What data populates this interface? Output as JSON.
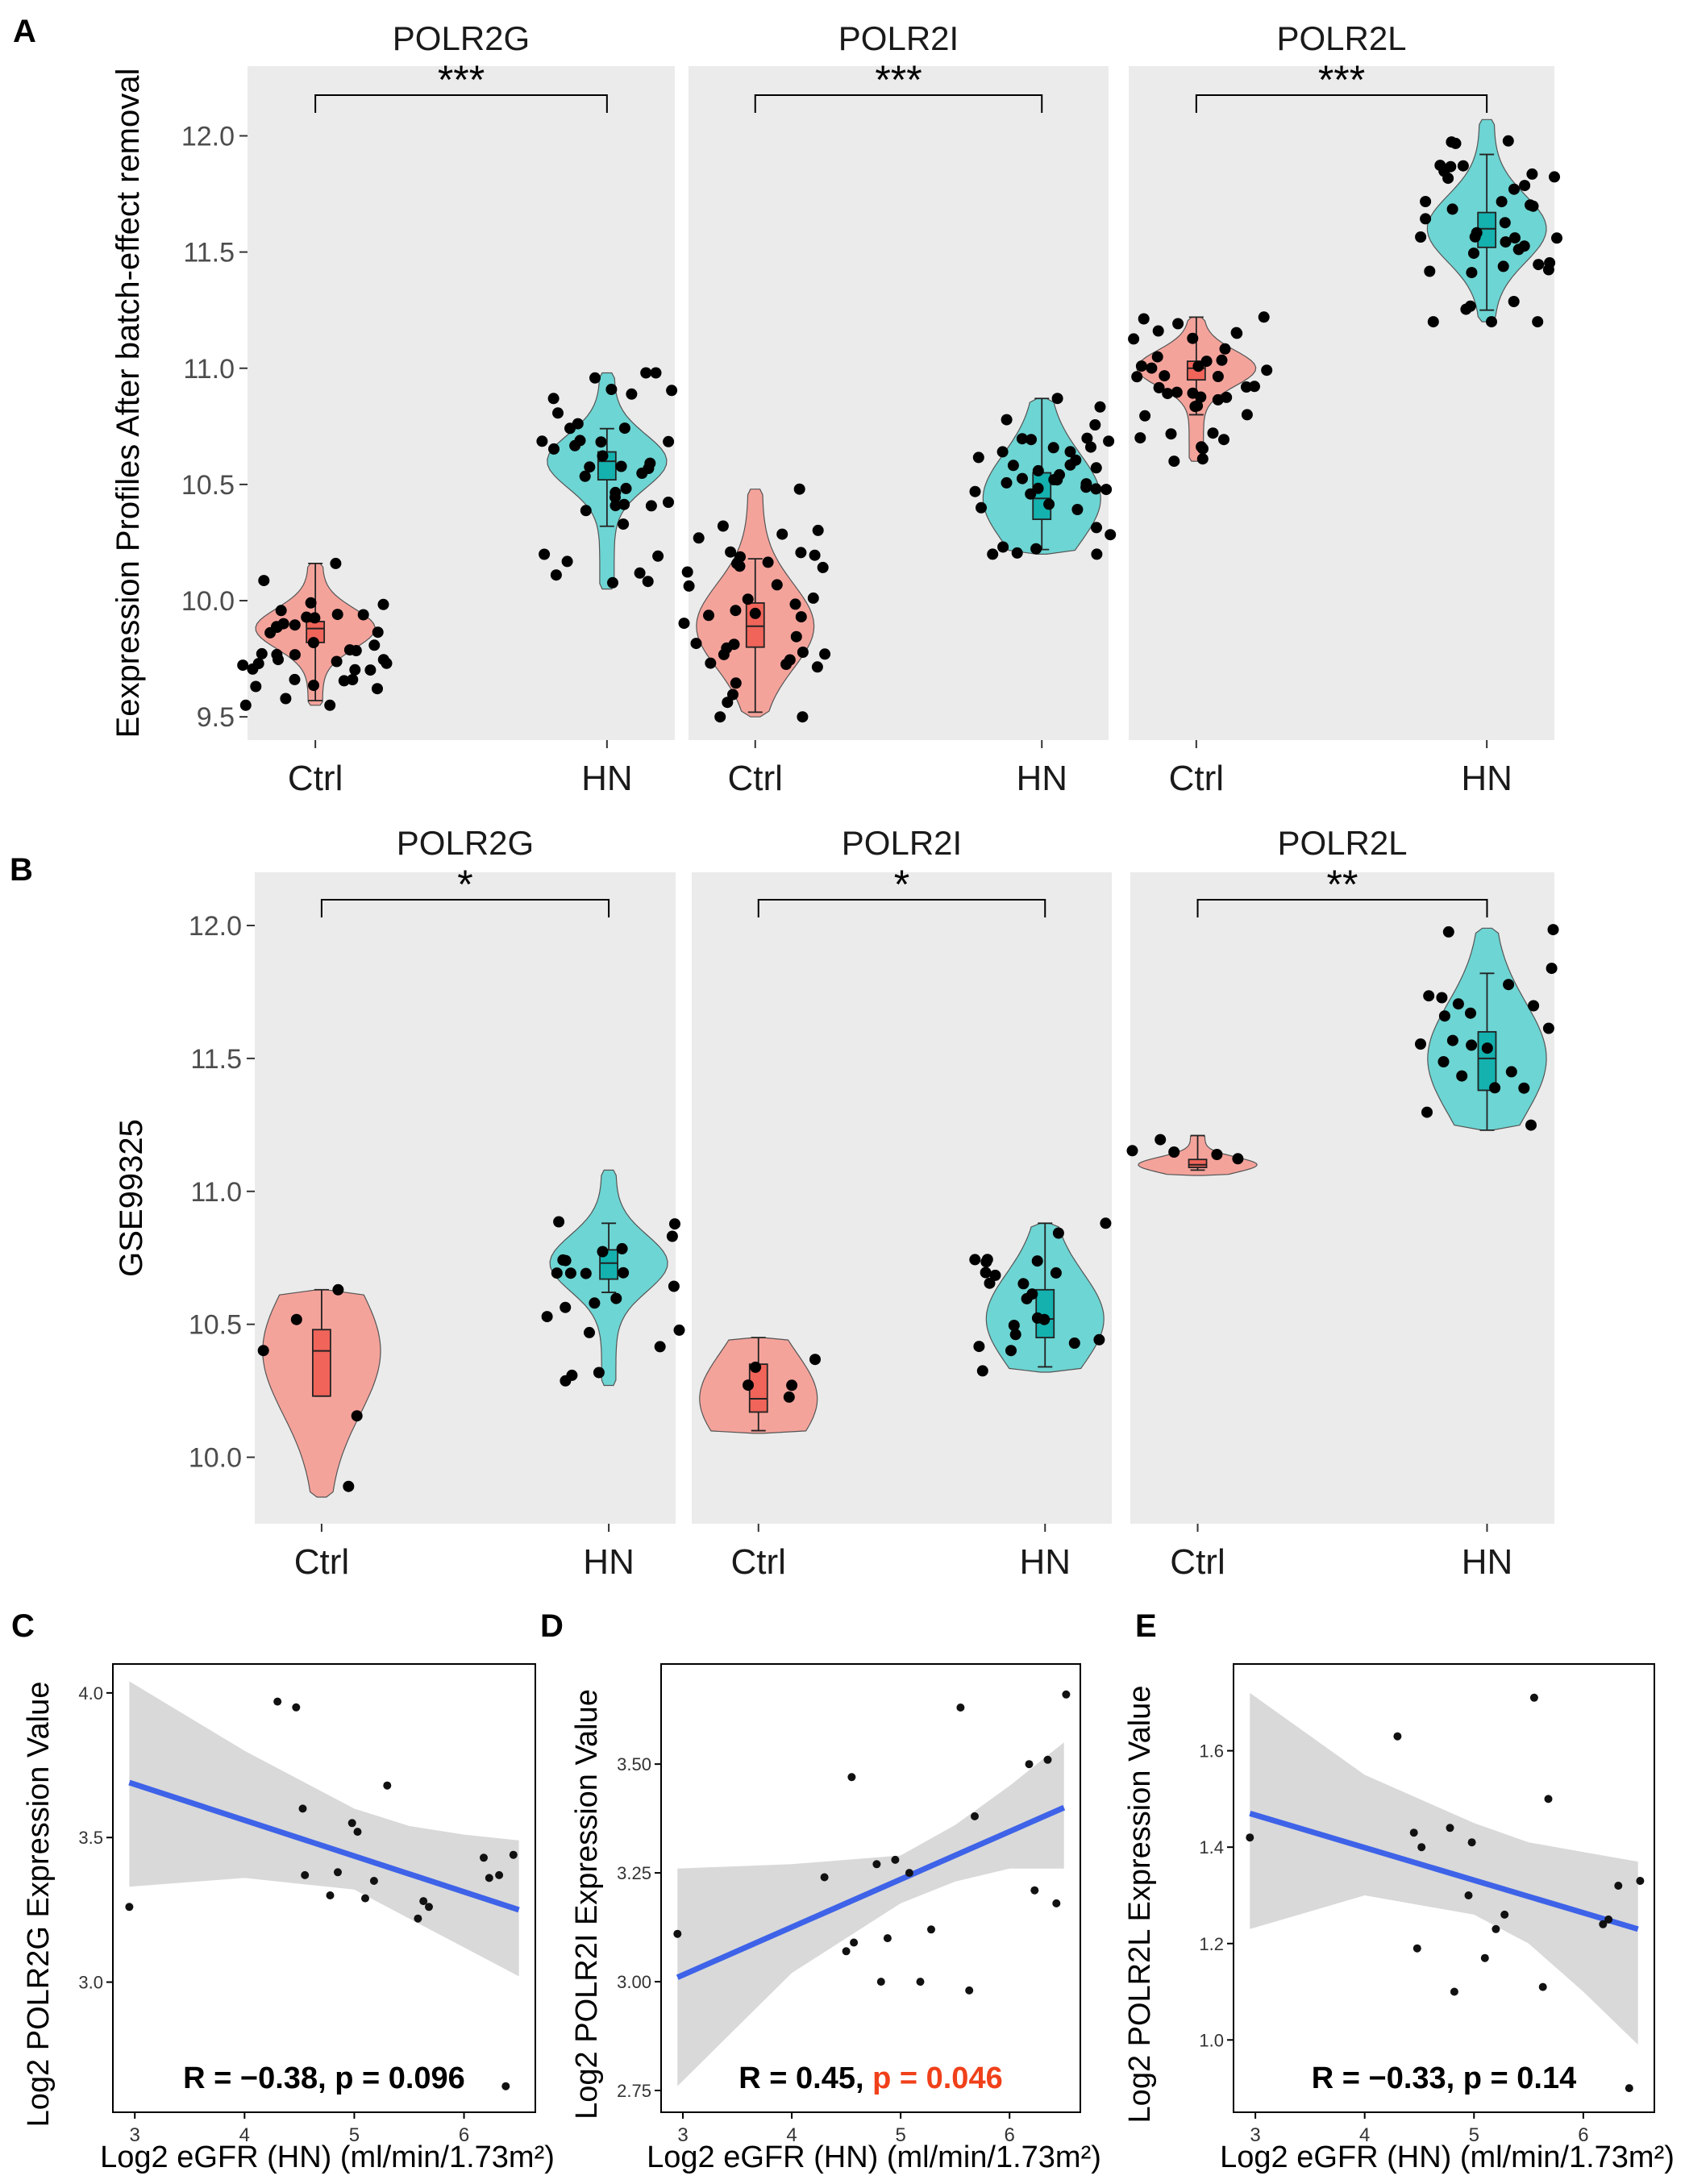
{
  "panel_labels": {
    "a": "A",
    "b": "B",
    "c": "C",
    "d": "D",
    "e": "E"
  },
  "colors": {
    "ctrl": "#F4A39B",
    "hn": "#6DD5D3",
    "ctrl_box": "#F0645A",
    "hn_box": "#14B1AE",
    "panel_bg": "#EBEBEB",
    "fit_line": "#3E63E8",
    "ci_band": "#D9D9D9",
    "sig_p": "#F0401A"
  },
  "chart_data": [
    {
      "type": "violin",
      "panel": "A",
      "ylabel": "Eexpression Profiles After batch-effect removal",
      "ylim": [
        9.4,
        12.3
      ],
      "yticks": [
        9.5,
        10.0,
        10.5,
        11.0,
        11.5,
        12.0
      ],
      "ytick_labels": [
        "9.5",
        "10.0",
        "10.5",
        "11.0",
        "11.5",
        "12.0"
      ],
      "categories": [
        "Ctrl",
        "HN"
      ],
      "facets": [
        {
          "title": "POLR2G",
          "significance": "***",
          "groups": [
            {
              "name": "Ctrl",
              "min": 9.55,
              "q1": 9.82,
              "median": 9.88,
              "q3": 9.91,
              "max": 10.16,
              "whisker_low": 9.57,
              "whisker_high": 10.16
            },
            {
              "name": "HN",
              "min": 10.05,
              "q1": 10.52,
              "median": 10.6,
              "q3": 10.64,
              "max": 10.98,
              "whisker_low": 10.32,
              "whisker_high": 10.74
            }
          ]
        },
        {
          "title": "POLR2I",
          "significance": "***",
          "groups": [
            {
              "name": "Ctrl",
              "min": 9.5,
              "q1": 9.8,
              "median": 9.89,
              "q3": 9.99,
              "max": 10.48,
              "whisker_low": 9.52,
              "whisker_high": 10.18
            },
            {
              "name": "HN",
              "min": 10.2,
              "q1": 10.35,
              "median": 10.44,
              "q3": 10.55,
              "max": 10.87,
              "whisker_low": 10.22,
              "whisker_high": 10.87
            }
          ]
        },
        {
          "title": "POLR2L",
          "significance": "***",
          "groups": [
            {
              "name": "Ctrl",
              "min": 10.6,
              "q1": 10.95,
              "median": 11.0,
              "q3": 11.03,
              "max": 11.22,
              "whisker_low": 10.8,
              "whisker_high": 11.22
            },
            {
              "name": "HN",
              "min": 11.2,
              "q1": 11.52,
              "median": 11.6,
              "q3": 11.67,
              "max": 12.07,
              "whisker_low": 11.25,
              "whisker_high": 11.92
            }
          ]
        }
      ]
    },
    {
      "type": "violin",
      "panel": "B",
      "ylabel": "GSE99325",
      "ylim": [
        9.75,
        12.2
      ],
      "yticks": [
        10.0,
        10.5,
        11.0,
        11.5,
        12.0
      ],
      "ytick_labels": [
        "10.0",
        "10.5",
        "11.0",
        "11.5",
        "12.0"
      ],
      "categories": [
        "Ctrl",
        "HN"
      ],
      "facets": [
        {
          "title": "POLR2G",
          "significance": "*",
          "groups": [
            {
              "name": "Ctrl",
              "min": 9.85,
              "q1": 10.23,
              "median": 10.4,
              "q3": 10.48,
              "max": 10.63,
              "whisker_low": 10.23,
              "whisker_high": 10.63
            },
            {
              "name": "HN",
              "min": 10.27,
              "q1": 10.67,
              "median": 10.73,
              "q3": 10.78,
              "max": 11.08,
              "whisker_low": 10.62,
              "whisker_high": 10.88
            }
          ]
        },
        {
          "title": "POLR2I",
          "significance": "*",
          "groups": [
            {
              "name": "Ctrl",
              "min": 10.09,
              "q1": 10.17,
              "median": 10.22,
              "q3": 10.35,
              "max": 10.45,
              "whisker_low": 10.1,
              "whisker_high": 10.45
            },
            {
              "name": "HN",
              "min": 10.32,
              "q1": 10.45,
              "median": 10.52,
              "q3": 10.63,
              "max": 10.88,
              "whisker_low": 10.34,
              "whisker_high": 10.88
            }
          ]
        },
        {
          "title": "POLR2L",
          "significance": "**",
          "groups": [
            {
              "name": "Ctrl",
              "min": 11.06,
              "q1": 11.09,
              "median": 11.1,
              "q3": 11.12,
              "max": 11.21,
              "whisker_low": 11.08,
              "whisker_high": 11.21
            },
            {
              "name": "HN",
              "min": 11.23,
              "q1": 11.38,
              "median": 11.5,
              "q3": 11.6,
              "max": 11.99,
              "whisker_low": 11.23,
              "whisker_high": 11.82
            }
          ]
        }
      ]
    },
    {
      "type": "scatter",
      "panel": "C",
      "xlabel": "Log2 eGFR (HN) (ml/min/1.73m²)",
      "ylabel": "Log2 POLR2G Expression Value",
      "xlim": [
        2.8,
        6.65
      ],
      "ylim": [
        2.55,
        4.1
      ],
      "xticks": [
        3,
        4,
        5,
        6
      ],
      "yticks": [
        3.0,
        3.5,
        4.0
      ],
      "ytick_labels": [
        "3.0",
        "3.5",
        "4.0"
      ],
      "points": [
        [
          2.95,
          3.26
        ],
        [
          4.3,
          3.97
        ],
        [
          4.47,
          3.95
        ],
        [
          4.53,
          3.6
        ],
        [
          4.55,
          3.37
        ],
        [
          4.78,
          3.3
        ],
        [
          4.85,
          3.38
        ],
        [
          4.98,
          3.55
        ],
        [
          5.03,
          3.52
        ],
        [
          5.1,
          3.29
        ],
        [
          5.18,
          3.35
        ],
        [
          5.3,
          3.68
        ],
        [
          5.58,
          3.22
        ],
        [
          5.63,
          3.28
        ],
        [
          5.68,
          3.26
        ],
        [
          6.18,
          3.43
        ],
        [
          6.23,
          3.36
        ],
        [
          6.32,
          3.37
        ],
        [
          6.38,
          2.64
        ],
        [
          6.45,
          3.44
        ]
      ],
      "fit": {
        "x": [
          2.95,
          6.5
        ],
        "y": [
          3.69,
          3.25
        ]
      },
      "ci_upper": [
        [
          2.95,
          4.04
        ],
        [
          4.0,
          3.8
        ],
        [
          5.0,
          3.6
        ],
        [
          5.5,
          3.54
        ],
        [
          6.0,
          3.51
        ],
        [
          6.5,
          3.49
        ]
      ],
      "ci_lower": [
        [
          2.95,
          3.33
        ],
        [
          4.0,
          3.36
        ],
        [
          5.0,
          3.32
        ],
        [
          5.5,
          3.22
        ],
        [
          6.0,
          3.12
        ],
        [
          6.5,
          3.02
        ]
      ],
      "stat_prefix": "R = −0.38, ",
      "stat_p": "p = 0.096",
      "p_significant": false
    },
    {
      "type": "scatter",
      "panel": "D",
      "xlabel": "Log2 eGFR (HN) (ml/min/1.73m²)",
      "ylabel": "Log2 POLR2I Expression Value",
      "xlim": [
        2.8,
        6.65
      ],
      "ylim": [
        2.7,
        3.73
      ],
      "xticks": [
        3,
        4,
        5,
        6
      ],
      "yticks": [
        2.75,
        3.0,
        3.25,
        3.5
      ],
      "ytick_labels": [
        "2.75",
        "3.00",
        "3.25",
        "3.50"
      ],
      "points": [
        [
          2.95,
          3.11
        ],
        [
          4.3,
          3.24
        ],
        [
          4.5,
          3.07
        ],
        [
          4.55,
          3.47
        ],
        [
          4.57,
          3.09
        ],
        [
          4.78,
          3.27
        ],
        [
          4.82,
          3.0
        ],
        [
          4.88,
          3.1
        ],
        [
          4.95,
          3.28
        ],
        [
          5.08,
          3.25
        ],
        [
          5.18,
          3.0
        ],
        [
          5.28,
          3.12
        ],
        [
          5.55,
          3.63
        ],
        [
          5.63,
          2.98
        ],
        [
          5.68,
          3.38
        ],
        [
          6.18,
          3.5
        ],
        [
          6.23,
          3.21
        ],
        [
          6.35,
          3.51
        ],
        [
          6.43,
          3.18
        ],
        [
          6.52,
          3.66
        ]
      ],
      "fit": {
        "x": [
          2.95,
          6.5
        ],
        "y": [
          3.01,
          3.4
        ]
      },
      "ci_upper": [
        [
          2.95,
          3.26
        ],
        [
          4.0,
          3.27
        ],
        [
          5.0,
          3.29
        ],
        [
          5.5,
          3.36
        ],
        [
          6.0,
          3.45
        ],
        [
          6.5,
          3.55
        ]
      ],
      "ci_lower": [
        [
          2.95,
          2.76
        ],
        [
          4.0,
          3.02
        ],
        [
          5.0,
          3.18
        ],
        [
          5.5,
          3.23
        ],
        [
          6.0,
          3.26
        ],
        [
          6.5,
          3.26
        ]
      ],
      "stat_prefix": "R = 0.45, ",
      "stat_p": "p = 0.046",
      "p_significant": true
    },
    {
      "type": "scatter",
      "panel": "E",
      "xlabel": "Log2 eGFR (HN) (ml/min/1.73m²)",
      "ylabel": "Log2 POLR2L Expression Value",
      "xlim": [
        2.8,
        6.65
      ],
      "ylim": [
        0.85,
        1.78
      ],
      "xticks": [
        3,
        4,
        5,
        6
      ],
      "yticks": [
        1.0,
        1.2,
        1.4,
        1.6
      ],
      "ytick_labels": [
        "1.0",
        "1.2",
        "1.4",
        "1.6"
      ],
      "points": [
        [
          2.95,
          1.42
        ],
        [
          4.3,
          1.63
        ],
        [
          4.45,
          1.43
        ],
        [
          4.48,
          1.19
        ],
        [
          4.52,
          1.4
        ],
        [
          4.78,
          1.44
        ],
        [
          4.82,
          1.1
        ],
        [
          4.95,
          1.3
        ],
        [
          4.98,
          1.41
        ],
        [
          5.1,
          1.17
        ],
        [
          5.2,
          1.23
        ],
        [
          5.28,
          1.26
        ],
        [
          5.55,
          1.71
        ],
        [
          5.63,
          1.11
        ],
        [
          5.68,
          1.5
        ],
        [
          6.18,
          1.24
        ],
        [
          6.23,
          1.25
        ],
        [
          6.32,
          1.32
        ],
        [
          6.42,
          0.9
        ],
        [
          6.52,
          1.33
        ]
      ],
      "fit": {
        "x": [
          2.95,
          6.5
        ],
        "y": [
          1.47,
          1.23
        ]
      },
      "ci_upper": [
        [
          2.95,
          1.72
        ],
        [
          4.0,
          1.55
        ],
        [
          5.0,
          1.45
        ],
        [
          5.5,
          1.41
        ],
        [
          6.0,
          1.39
        ],
        [
          6.5,
          1.37
        ]
      ],
      "ci_lower": [
        [
          2.95,
          1.23
        ],
        [
          4.0,
          1.3
        ],
        [
          5.0,
          1.26
        ],
        [
          5.5,
          1.2
        ],
        [
          6.0,
          1.1
        ],
        [
          6.5,
          0.99
        ]
      ],
      "stat_prefix": "R = −0.33, ",
      "stat_p": "p = 0.14",
      "p_significant": false
    }
  ]
}
